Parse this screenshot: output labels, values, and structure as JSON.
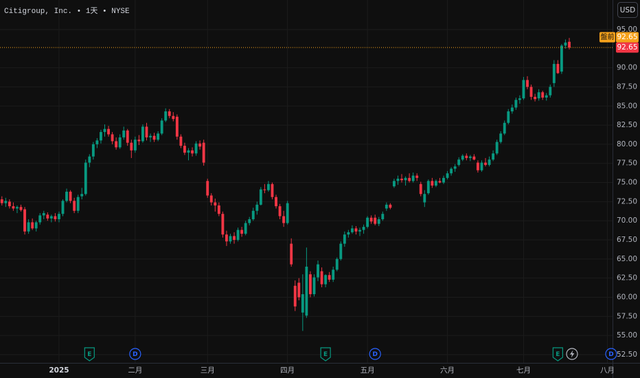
{
  "title": "Citigroup, Inc. • 1天 • NYSE",
  "currency_button": "USD",
  "chart_data": {
    "type": "candlestick",
    "up_color": "#089981",
    "down_color": "#f23645",
    "grid": true,
    "xlim": [
      -0.5,
      160
    ],
    "xticks": [
      {
        "value": 15,
        "label": "2025"
      },
      {
        "value": 35,
        "label": "二月"
      },
      {
        "value": 54,
        "label": "三月"
      },
      {
        "value": 75,
        "label": "四月"
      },
      {
        "value": 96,
        "label": "五月"
      },
      {
        "value": 117,
        "label": "六月"
      },
      {
        "value": 137,
        "label": "七月"
      },
      {
        "value": 159,
        "label": "八月"
      }
    ],
    "ylim": [
      51.42,
      98.86
    ],
    "yticks": [
      {
        "value": 52.5,
        "label": "52.50"
      },
      {
        "value": 55,
        "label": "55.00"
      },
      {
        "value": 57.5,
        "label": "57.50"
      },
      {
        "value": 60,
        "label": "60.00"
      },
      {
        "value": 62.5,
        "label": "62.50"
      },
      {
        "value": 65,
        "label": "65.00"
      },
      {
        "value": 67.5,
        "label": "67.50"
      },
      {
        "value": 70,
        "label": "70.00"
      },
      {
        "value": 72.5,
        "label": "72.50"
      },
      {
        "value": 75,
        "label": "75.00"
      },
      {
        "value": 77.5,
        "label": "77.50"
      },
      {
        "value": 80,
        "label": "80.00"
      },
      {
        "value": 82.5,
        "label": "82.50"
      },
      {
        "value": 85,
        "label": "85.00"
      },
      {
        "value": 87.5,
        "label": "87.50"
      },
      {
        "value": 90,
        "label": "90.00"
      },
      {
        "value": 95,
        "label": "95.00"
      }
    ],
    "open": [
      72.8,
      72.3,
      72.5,
      71.9,
      71.6,
      71.8,
      71.5,
      68.6,
      69.8,
      69.0,
      69.8,
      70.7,
      70.8,
      70.3,
      70.6,
      70.2,
      70.9,
      72.6,
      73.8,
      72.6,
      71.3,
      73.2,
      73.5,
      77.6,
      78.4,
      80.0,
      80.5,
      81.6,
      82.0,
      81.3,
      80.4,
      79.6,
      80.9,
      81.8,
      80.2,
      79.2,
      80.6,
      80.4,
      82.3,
      80.9,
      81.1,
      80.6,
      81.4,
      83.1,
      84.3,
      83.7,
      83.6,
      81.0,
      79.8,
      78.9,
      79.2,
      78.8,
      80.1,
      80.2,
      75.2,
      73.3,
      72.4,
      72.0,
      70.9,
      68.2,
      67.3,
      68.0,
      67.5,
      68.8,
      68.3,
      69.7,
      70.2,
      71.3,
      72.1,
      74.1,
      74.0,
      74.8,
      73.1,
      71.9,
      70.6,
      69.7,
      67.0,
      61.5,
      61.9,
      58.0,
      57.6,
      63.0,
      60.4,
      62.6,
      63.4,
      61.7,
      62.9,
      62.3,
      63.6,
      65.0,
      67.0,
      68.2,
      68.5,
      69.0,
      68.6,
      68.8,
      69.2,
      70.4,
      70.4,
      69.6,
      70.2,
      71.6,
      72.1,
      74.5,
      75.2,
      75.5,
      75.3,
      75.6,
      75.2,
      75.9,
      74.8,
      72.4,
      73.6,
      75.2,
      74.6,
      75.2,
      75.0,
      75.6,
      76.2,
      76.8,
      77.3,
      78.0,
      78.5,
      78.2,
      78.4,
      77.6,
      76.6,
      77.6,
      77.3,
      78.0,
      78.8,
      80.3,
      81.4,
      82.8,
      84.3,
      84.8,
      85.8,
      86.0,
      88.4,
      87.5,
      86.2,
      86.0,
      86.8,
      86.1,
      86.4,
      88.0,
      90.5,
      89.5,
      92.9,
      93.4
    ],
    "high": [
      73.2,
      73.0,
      72.8,
      72.4,
      72.0,
      72.1,
      71.8,
      70.2,
      70.3,
      70.0,
      71.0,
      71.3,
      71.1,
      70.8,
      71.0,
      71.2,
      72.8,
      74.2,
      74.0,
      73.0,
      73.4,
      74.3,
      78.0,
      78.7,
      80.3,
      80.8,
      81.9,
      82.6,
      82.4,
      81.6,
      80.9,
      81.3,
      82.3,
      82.0,
      80.6,
      81.0,
      81.2,
      82.6,
      82.8,
      81.4,
      81.5,
      81.7,
      83.4,
      84.7,
      84.6,
      84.2,
      83.9,
      81.3,
      80.2,
      79.5,
      79.6,
      80.4,
      80.5,
      80.6,
      75.5,
      73.6,
      72.9,
      72.4,
      71.2,
      68.7,
      68.3,
      68.5,
      69.1,
      69.2,
      70.0,
      70.5,
      71.7,
      72.5,
      74.4,
      74.8,
      75.2,
      75.0,
      73.4,
      72.2,
      71.3,
      72.6,
      67.7,
      62.2,
      62.5,
      63.0,
      66.5,
      63.4,
      63.0,
      64.8,
      63.9,
      63.0,
      63.3,
      64.0,
      65.2,
      67.3,
      68.6,
      68.8,
      69.4,
      69.3,
      69.1,
      69.5,
      70.6,
      70.7,
      70.8,
      70.5,
      71.2,
      72.4,
      72.3,
      75.5,
      75.9,
      76.1,
      75.8,
      76.2,
      76.3,
      76.2,
      75.1,
      74.0,
      75.4,
      75.6,
      75.4,
      75.6,
      75.9,
      76.5,
      77.0,
      77.4,
      78.3,
      78.7,
      78.8,
      78.6,
      78.7,
      77.9,
      77.9,
      78.2,
      78.4,
      79.2,
      80.6,
      81.7,
      83.1,
      84.6,
      85.2,
      86.1,
      86.4,
      88.8,
      88.9,
      87.8,
      86.6,
      87.2,
      87.0,
      86.7,
      87.8,
      91.0,
      91.0,
      93.1,
      93.7,
      93.9
    ],
    "low": [
      72.0,
      71.8,
      71.6,
      71.3,
      71.0,
      71.2,
      68.2,
      68.3,
      68.8,
      68.6,
      69.5,
      70.2,
      70.0,
      69.8,
      69.9,
      69.8,
      70.6,
      72.4,
      72.3,
      71.0,
      71.0,
      72.8,
      73.3,
      77.0,
      78.0,
      79.5,
      80.1,
      81.0,
      81.0,
      80.0,
      79.3,
      79.4,
      80.6,
      79.8,
      78.2,
      78.9,
      79.9,
      80.2,
      80.5,
      80.3,
      80.3,
      80.4,
      81.2,
      82.9,
      83.4,
      83.0,
      80.6,
      79.5,
      78.6,
      77.9,
      78.4,
      78.5,
      79.3,
      77.2,
      73.0,
      72.0,
      71.2,
      70.6,
      67.8,
      66.7,
      67.0,
      67.0,
      67.3,
      67.9,
      68.1,
      69.4,
      70.0,
      70.8,
      72.0,
      73.6,
      73.8,
      72.8,
      71.6,
      70.2,
      69.2,
      69.5,
      64.0,
      58.2,
      59.6,
      55.6,
      57.3,
      60.0,
      60.1,
      62.1,
      61.3,
      61.3,
      62.0,
      62.0,
      63.4,
      64.8,
      66.6,
      67.8,
      68.3,
      68.2,
      68.0,
      68.3,
      69.0,
      69.6,
      69.4,
      69.3,
      70.0,
      71.3,
      71.5,
      74.3,
      74.7,
      75.0,
      74.6,
      75.0,
      75.0,
      75.2,
      73.2,
      71.8,
      73.4,
      74.3,
      74.4,
      74.9,
      74.8,
      75.4,
      75.9,
      76.4,
      77.1,
      77.8,
      77.9,
      77.8,
      77.9,
      76.3,
      76.4,
      77.1,
      77.1,
      77.8,
      78.6,
      80.1,
      81.2,
      82.6,
      84.0,
      84.5,
      85.3,
      85.8,
      87.2,
      85.8,
      85.6,
      85.7,
      85.8,
      85.7,
      86.1,
      87.5,
      89.2,
      89.2,
      92.5,
      92.4
    ],
    "close": [
      72.3,
      72.6,
      71.9,
      71.6,
      71.8,
      71.4,
      68.6,
      69.8,
      69.0,
      69.8,
      70.7,
      71.0,
      70.3,
      70.6,
      70.2,
      70.9,
      72.6,
      73.8,
      72.6,
      71.3,
      73.1,
      73.5,
      77.6,
      78.4,
      80.0,
      80.5,
      81.6,
      82.0,
      81.3,
      80.4,
      79.6,
      80.9,
      81.8,
      80.2,
      79.2,
      80.6,
      80.4,
      82.3,
      80.9,
      81.1,
      80.6,
      81.4,
      83.1,
      84.3,
      83.7,
      83.3,
      81.0,
      79.8,
      78.9,
      79.2,
      78.8,
      80.1,
      79.7,
      77.6,
      73.3,
      72.4,
      72.0,
      70.9,
      68.2,
      67.3,
      68.0,
      67.5,
      68.8,
      68.3,
      69.7,
      70.2,
      71.3,
      72.1,
      74.1,
      74.0,
      74.8,
      73.1,
      71.9,
      70.6,
      69.7,
      72.3,
      64.3,
      58.8,
      60.0,
      60.4,
      64.0,
      60.4,
      62.6,
      64.3,
      61.7,
      62.9,
      62.3,
      63.6,
      65.0,
      67.0,
      68.2,
      68.5,
      69.0,
      68.6,
      68.8,
      69.2,
      70.4,
      69.9,
      69.6,
      70.2,
      70.9,
      72.1,
      71.7,
      75.2,
      75.5,
      75.3,
      75.6,
      75.2,
      75.9,
      75.6,
      73.5,
      73.5,
      75.2,
      74.6,
      75.2,
      75.0,
      75.6,
      76.2,
      76.8,
      77.1,
      78.0,
      78.5,
      78.2,
      78.4,
      78.0,
      76.6,
      77.6,
      77.3,
      78.0,
      78.8,
      80.3,
      81.4,
      82.8,
      84.3,
      84.8,
      85.8,
      86.0,
      88.4,
      87.5,
      86.2,
      85.9,
      86.8,
      86.1,
      86.4,
      87.5,
      90.5,
      89.3,
      92.9,
      93.3,
      92.65
    ],
    "last_price": 92.65,
    "last_price_color": "#f23645",
    "premarket": {
      "label": "盤前",
      "value": 92.65,
      "color": "#f7a21b"
    },
    "events": [
      {
        "label": "E",
        "x": 23,
        "color": "#089981"
      },
      {
        "label": "D",
        "x": 35,
        "color": "#2962ff"
      },
      {
        "label": "E",
        "x": 85,
        "color": "#089981"
      },
      {
        "label": "D",
        "x": 98,
        "color": "#2962ff"
      },
      {
        "label": "E",
        "x": 146,
        "color": "#089981"
      },
      {
        "label": "D",
        "x": 160,
        "color": "#2962ff"
      }
    ]
  }
}
